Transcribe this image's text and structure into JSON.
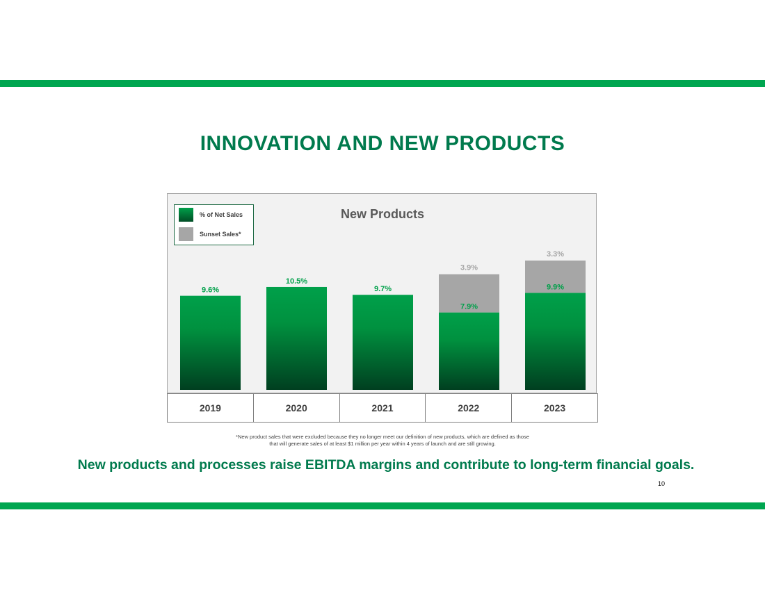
{
  "slide": {
    "title": "INNOVATION AND NEW PRODUCTS",
    "footnote_line1": "*New product sales that were excluded because they no longer meet our definition of new products, which are defined as those",
    "footnote_line2": "that will generate sales of at least $1 million per year within 4 years of launch and are still growing.",
    "tagline": "New products and processes raise EBITDA margins and contribute to long-term financial goals.",
    "page_number": "10",
    "colors": {
      "band": "#00a650",
      "title": "#007a4d",
      "green_label": "#00a04a",
      "gray_label": "#a6a6a6"
    }
  },
  "legend": {
    "items": [
      {
        "label": "% of Net Sales",
        "color": "#00a04a"
      },
      {
        "label": "Sunset Sales*",
        "color": "#a6a6a6"
      }
    ],
    "placement": "top-left"
  },
  "chart_data": {
    "type": "bar",
    "stacked": true,
    "title": "New Products",
    "categories": [
      "2019",
      "2020",
      "2021",
      "2022",
      "2023"
    ],
    "series": [
      {
        "name": "% of Net Sales",
        "values": [
          9.6,
          10.5,
          9.7,
          7.9,
          9.9
        ],
        "labels": [
          "9.6%",
          "10.5%",
          "9.7%",
          "7.9%",
          "9.9%"
        ]
      },
      {
        "name": "Sunset Sales*",
        "values": [
          0,
          0,
          0,
          3.9,
          3.3
        ],
        "labels": [
          "",
          "",
          "",
          "3.9%",
          "3.3%"
        ]
      }
    ],
    "xlabel": "",
    "ylabel": "",
    "grid": false
  }
}
